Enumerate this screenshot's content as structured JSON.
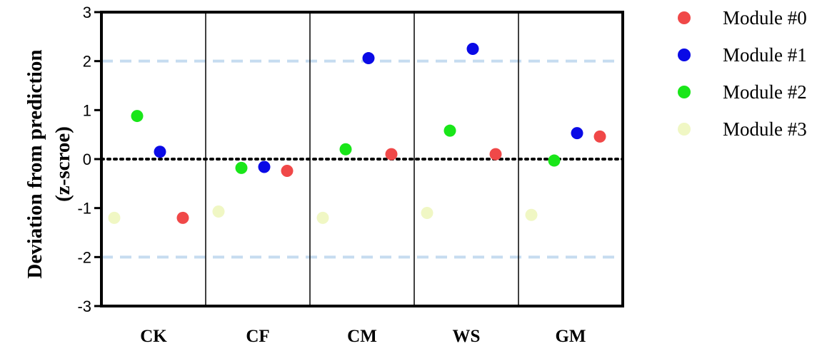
{
  "chart_data": {
    "type": "scatter",
    "title": "",
    "ylabel_line1": "Deviation from prediction",
    "ylabel_line2": "(z-scroe)",
    "ylim": [
      -3,
      3
    ],
    "yticks": [
      "3",
      "2",
      "1",
      "0",
      "-1",
      "-2",
      "-3"
    ],
    "categories": [
      "CK",
      "CF",
      "CM",
      "WS",
      "GM"
    ],
    "reference_lines": [
      {
        "y": 2,
        "style": "dashed",
        "color": "#c6dcf0"
      },
      {
        "y": -2,
        "style": "dashed",
        "color": "#c6dcf0"
      },
      {
        "y": 0,
        "style": "dotted",
        "color": "#000000"
      }
    ],
    "grid": false,
    "legend_position": "right",
    "series": [
      {
        "name": "Module #0",
        "color": "#f04848",
        "values": [
          -1.2,
          -0.24,
          0.1,
          0.1,
          0.46
        ]
      },
      {
        "name": "Module #1",
        "color": "#0a0ae6",
        "values": [
          0.15,
          -0.16,
          2.06,
          2.25,
          0.53
        ]
      },
      {
        "name": "Module #2",
        "color": "#19e619",
        "values": [
          0.88,
          -0.18,
          0.2,
          0.58,
          -0.03
        ]
      },
      {
        "name": "Module #3",
        "color": "#f0f7c4",
        "values": [
          -1.2,
          -1.07,
          -1.2,
          -1.1,
          -1.14
        ]
      }
    ],
    "series_offsets_order": [
      "Module #3",
      "Module #2",
      "Module #1",
      "Module #0"
    ]
  }
}
